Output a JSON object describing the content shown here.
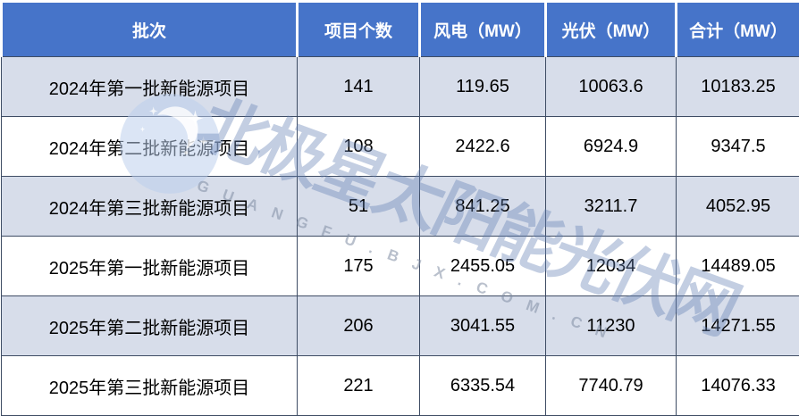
{
  "page": {
    "description": "新能源项目批次汇总表"
  },
  "chart_data": {
    "type": "table",
    "columns": [
      "批次",
      "项目个数",
      "风电（MW）",
      "光伏（MW）",
      "合计（MW）"
    ],
    "rows": [
      [
        "2024年第一批新能源项目",
        "141",
        "119.65",
        "10063.6",
        "10183.25"
      ],
      [
        "2024年第二批新能源项目",
        "108",
        "2422.6",
        "6924.9",
        "9347.5"
      ],
      [
        "2024年第三批新能源项目",
        "51",
        "841.25",
        "3211.7",
        "4052.95"
      ],
      [
        "2025年第一批新能源项目",
        "175",
        "2455.05",
        "12034",
        "14489.05"
      ],
      [
        "2025年第二批新能源项目",
        "206",
        "3041.55",
        "11230",
        "14271.55"
      ],
      [
        "2025年第三批新能源项目",
        "221",
        "6335.54",
        "7740.79",
        "14076.33"
      ]
    ],
    "layout_hints": {
      "header_row": true,
      "zebra_striping": "odd rows light blue, even rows white",
      "all_cells_centered": true
    }
  },
  "watermark": {
    "brand_text": "北极星太阳能光伏网",
    "domain_text": "GUANGFU.BJX.COM.CN",
    "logo": "moon-stars-logo"
  },
  "colors": {
    "header_bg": "#4674C9",
    "header_text": "#FFFFFF",
    "row_alt_bg": "#D7DDEA",
    "row_bg": "#FFFFFF",
    "cell_border": "#3E4C64",
    "body_text": "#000000",
    "watermark_blue": "#8FA8CF",
    "logo_circle": "#BBCFEE"
  }
}
